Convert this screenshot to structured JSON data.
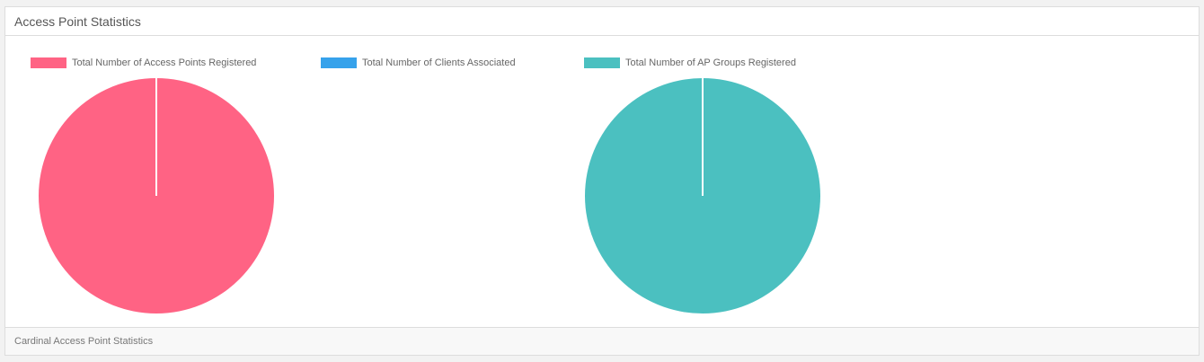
{
  "panel": {
    "title": "Access Point Statistics",
    "footer": "Cardinal Access Point Statistics"
  },
  "legend": [
    {
      "label": "Total Number of Access Points Registered",
      "color": "#ff6384"
    },
    {
      "label": "Total Number of Clients Associated",
      "color": "#36a2eb"
    },
    {
      "label": "Total Number of AP Groups Registered",
      "color": "#4bc0c0"
    }
  ],
  "chart_data": [
    {
      "type": "pie",
      "series": [
        {
          "name": "Total Number of Access Points Registered",
          "values": [
            1
          ]
        }
      ],
      "colors": [
        "#ff6384"
      ]
    },
    {
      "type": "pie",
      "series": [
        {
          "name": "Total Number of AP Groups Registered",
          "values": [
            1
          ]
        }
      ],
      "colors": [
        "#4bc0c0"
      ]
    }
  ]
}
